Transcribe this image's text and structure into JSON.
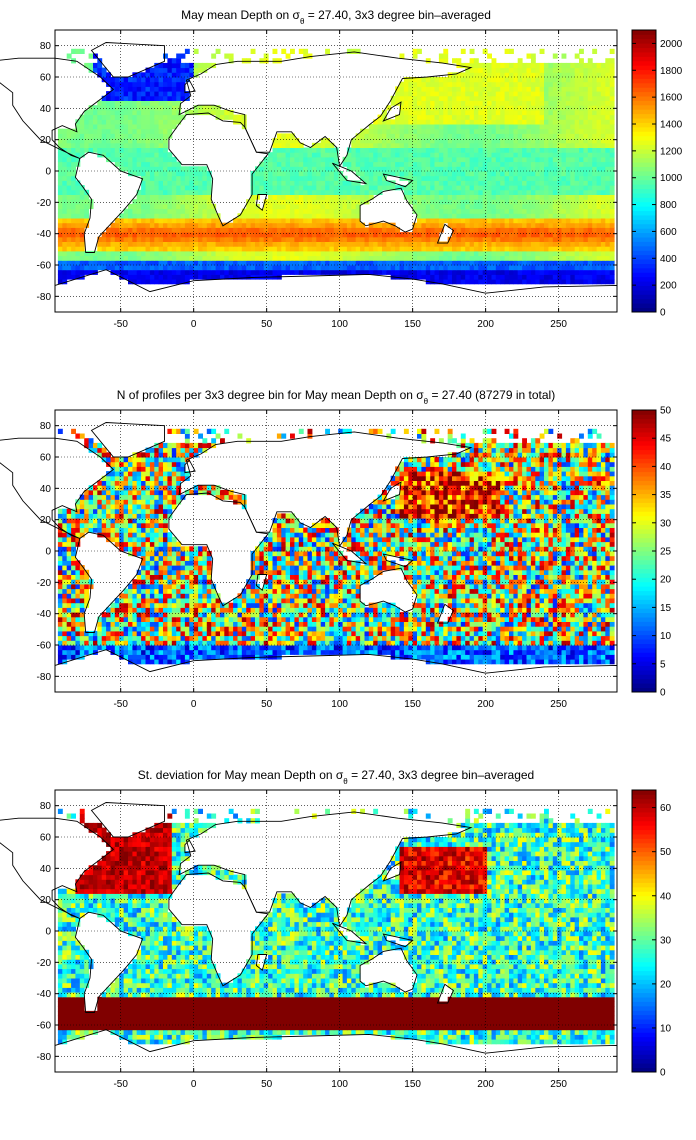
{
  "chart_data": [
    {
      "type": "heatmap",
      "title_pre": "May mean Depth on σ",
      "title_sub": "θ",
      "title_post": " = 27.40, 3x3 degree bin–averaged",
      "xticks": [
        -50,
        0,
        50,
        100,
        150,
        200,
        250
      ],
      "yticks": [
        80,
        60,
        40,
        20,
        0,
        -20,
        -40,
        -60,
        -80
      ],
      "xlim": [
        -95,
        290
      ],
      "ylim": [
        -90,
        90
      ],
      "grid": true,
      "colorbar": {
        "min": 0,
        "max": 2100,
        "ticks": [
          0,
          200,
          400,
          600,
          800,
          1000,
          1200,
          1400,
          1600,
          1800,
          2000
        ]
      }
    },
    {
      "type": "heatmap",
      "title_pre": "N of profiles per 3x3 degree bin for May mean Depth on σ",
      "title_sub": "θ",
      "title_post": " = 27.40 (87279 in total)",
      "xticks": [
        -50,
        0,
        50,
        100,
        150,
        200,
        250
      ],
      "yticks": [
        80,
        60,
        40,
        20,
        0,
        -20,
        -40,
        -60,
        -80
      ],
      "xlim": [
        -95,
        290
      ],
      "ylim": [
        -90,
        90
      ],
      "grid": true,
      "colorbar": {
        "min": 0,
        "max": 50,
        "ticks": [
          0,
          5,
          10,
          15,
          20,
          25,
          30,
          35,
          40,
          45,
          50
        ]
      }
    },
    {
      "type": "heatmap",
      "title_pre": "St. deviation for May mean Depth on σ",
      "title_sub": "θ",
      "title_post": " = 27.40, 3x3 degree bin–averaged",
      "xticks": [
        -50,
        0,
        50,
        100,
        150,
        200,
        250
      ],
      "yticks": [
        80,
        60,
        40,
        20,
        0,
        -20,
        -40,
        -60,
        -80
      ],
      "xlim": [
        -95,
        290
      ],
      "ylim": [
        -90,
        90
      ],
      "grid": true,
      "colorbar": {
        "min": 0,
        "max": 64,
        "ticks": [
          0,
          10,
          20,
          30,
          40,
          50,
          60
        ]
      }
    }
  ]
}
